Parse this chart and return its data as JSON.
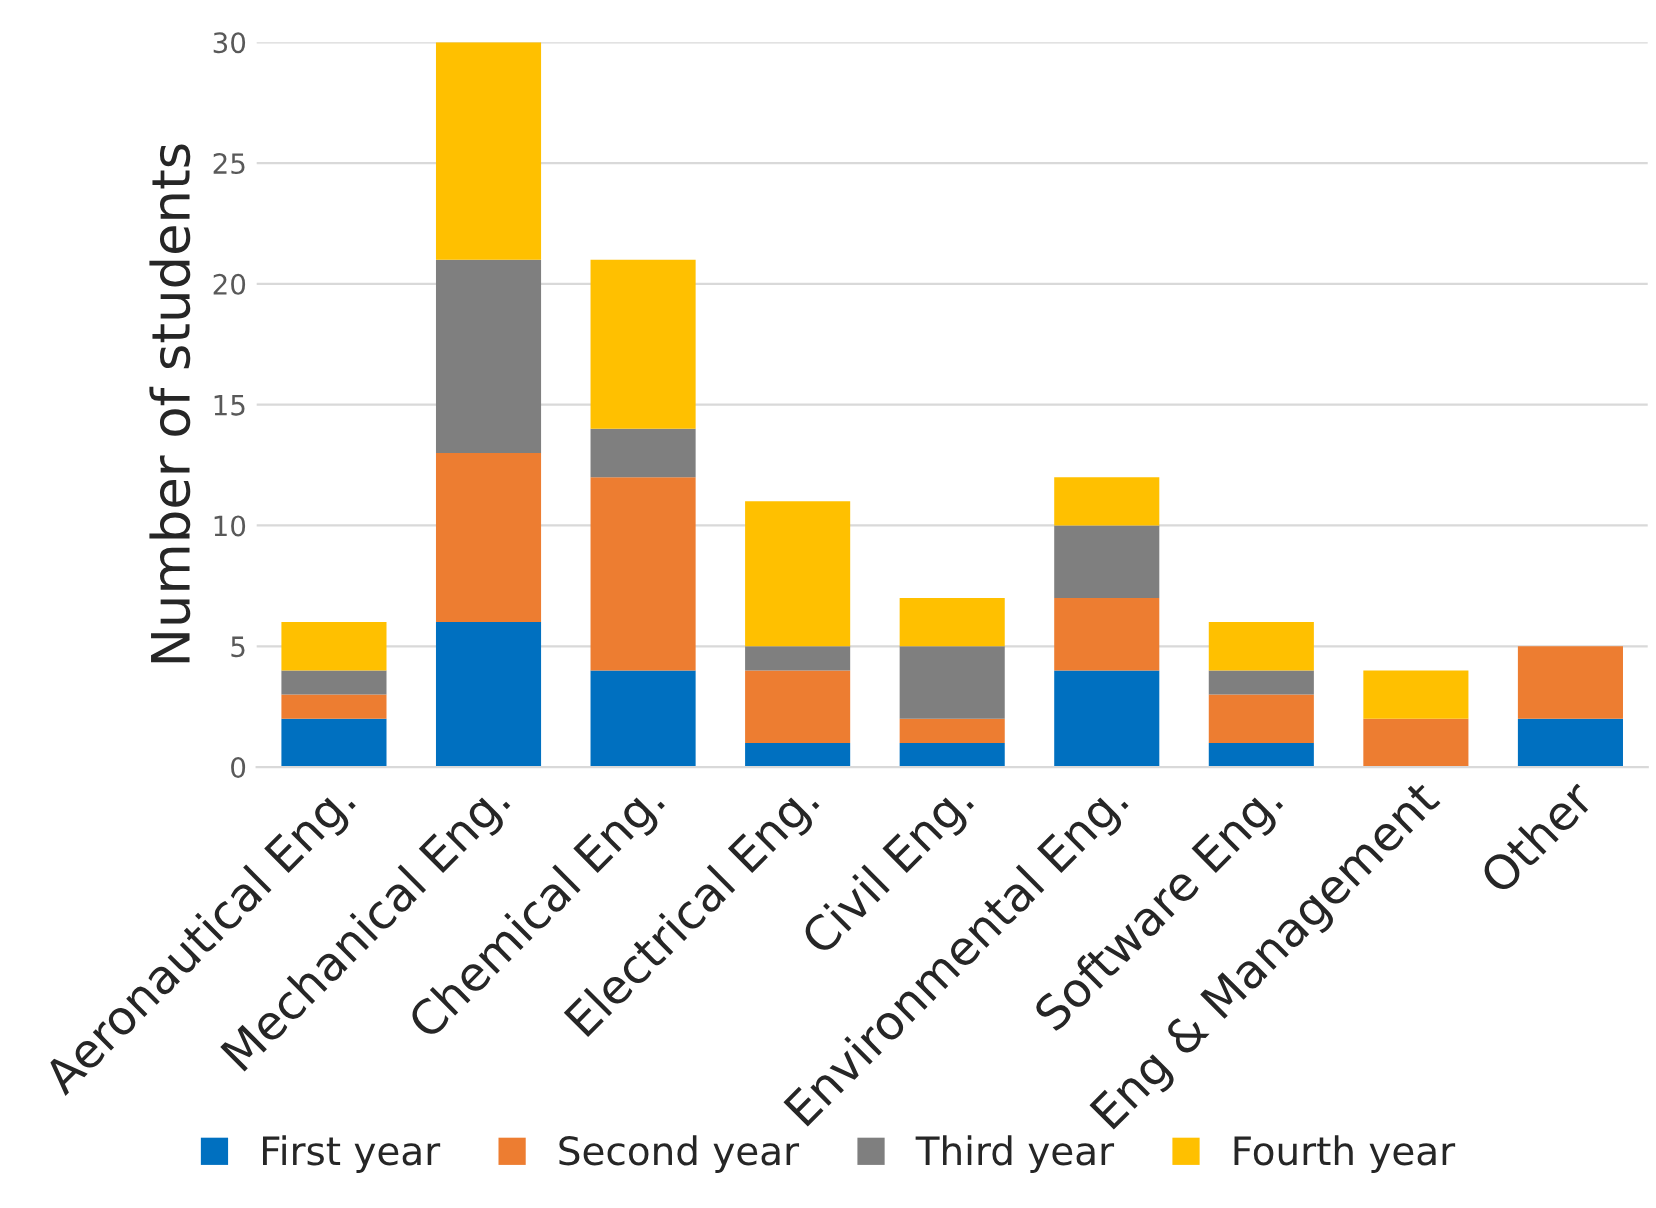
{
  "chart_data": {
    "type": "bar",
    "stacked": true,
    "ylabel": "Number of students",
    "categories": [
      "Aeronautical Eng.",
      "Mechanical Eng.",
      "Chemical Eng.",
      "Electrical Eng.",
      "Civil Eng.",
      "Environmental Eng.",
      "Software Eng.",
      "Eng & Management",
      "Other"
    ],
    "series": [
      {
        "name": "First year",
        "color": "#0070c0",
        "values": [
          2,
          6,
          4,
          1,
          1,
          4,
          1,
          0,
          2
        ]
      },
      {
        "name": "Second year",
        "color": "#ed7d31",
        "values": [
          1,
          7,
          8,
          3,
          1,
          3,
          2,
          2,
          3
        ]
      },
      {
        "name": "Third year",
        "color": "#7f7f7f",
        "values": [
          1,
          8,
          2,
          1,
          3,
          3,
          1,
          0,
          0
        ]
      },
      {
        "name": "Fourth year",
        "color": "#ffc000",
        "values": [
          2,
          9,
          7,
          6,
          2,
          2,
          2,
          2,
          0
        ]
      }
    ],
    "ylim": [
      0,
      30
    ],
    "yticks": [
      0,
      5,
      10,
      15,
      20,
      25,
      30
    ],
    "grid": "y",
    "legend": "bottom"
  }
}
